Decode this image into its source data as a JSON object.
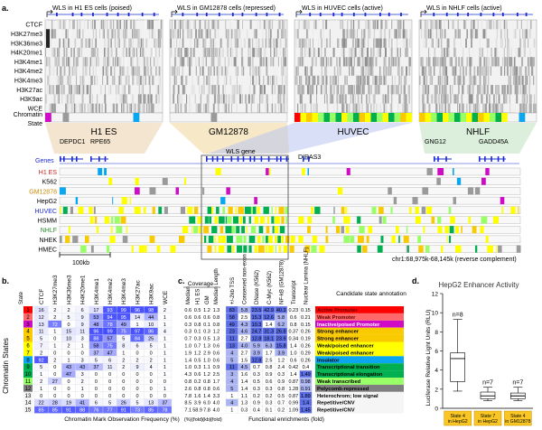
{
  "panel_a": {
    "label": "a.",
    "windows": [
      {
        "title": "WLS in H1 ES cells (poised)",
        "cell": "H1 ES"
      },
      {
        "title": "WLS in GM12878 cells (repressed)",
        "cell": "GM12878"
      },
      {
        "title": "WLS in HUVEC cells (active)",
        "cell": "HUVEC"
      },
      {
        "title": "WLS in NHLF cells (active)",
        "cell": "NHLF"
      }
    ],
    "marks": [
      "CTCF",
      "H3K27me3",
      "H3K36me3",
      "H4K20me1",
      "H3K4me1",
      "H3K4me2",
      "H3K4me3",
      "H3K27ac",
      "H3K9ac",
      "WCE",
      "Chromatin",
      "State"
    ],
    "genes_label": "Genes",
    "genes": [
      "DEPDC1",
      "RPE65",
      "WLS gene",
      "DIRAS3",
      "GNG12",
      "GADD45A"
    ],
    "cell_types": [
      {
        "name": "H1 ES",
        "color": "#cc2222"
      },
      {
        "name": "K562",
        "color": "#000000"
      },
      {
        "name": "GM12878",
        "color": "#c98a00"
      },
      {
        "name": "HepG2",
        "color": "#000000"
      },
      {
        "name": "HUVEC",
        "color": "#1a2bd0"
      },
      {
        "name": "HSMM",
        "color": "#000000"
      },
      {
        "name": "NHLF",
        "color": "#2a8a2a"
      },
      {
        "name": "NHEK",
        "color": "#000000"
      },
      {
        "name": "HMEC",
        "color": "#000000"
      }
    ],
    "scale_label": "100kb",
    "coords": "chr1:68,975k-68,145k (reverse complement)"
  },
  "panel_b": {
    "label": "b.",
    "side_label": "Chromatin States",
    "state_header": "State",
    "columns": [
      "CTCF",
      "H3K27me3",
      "H3K36me3",
      "H4K20me1",
      "H3K4me1",
      "H3K4me2",
      "H3K4me3",
      "H3K27ac",
      "H3K9ac",
      "WCE"
    ],
    "rows": [
      [
        "16",
        "2",
        "2",
        "6",
        "17",
        "93",
        "99",
        "96",
        "98",
        "2"
      ],
      [
        "12",
        "2",
        "5",
        "9",
        "53",
        "94",
        "95",
        "14",
        "44",
        "1"
      ],
      [
        "13",
        "72",
        "0",
        "9",
        "48",
        "78",
        "49",
        "1",
        "10",
        "1"
      ],
      [
        "11",
        "1",
        "15",
        "11",
        "96",
        "99",
        "75",
        "97",
        "86",
        "4"
      ],
      [
        "5",
        "0",
        "10",
        "3",
        "88",
        "57",
        "5",
        "84",
        "25",
        "1"
      ],
      [
        "7",
        "1",
        "2",
        "1",
        "58",
        "75",
        "8",
        "6",
        "5",
        "1"
      ],
      [
        "2",
        "0",
        "0",
        "0",
        "37",
        "47",
        "1",
        "0",
        "0",
        "1"
      ],
      [
        "92",
        "2",
        "1",
        "3",
        "5",
        "6",
        "2",
        "2",
        "2",
        "1"
      ],
      [
        "5",
        "0",
        "43",
        "43",
        "37",
        "11",
        "2",
        "9",
        "4",
        "1"
      ],
      [
        "1",
        "0",
        "47",
        "3",
        "0",
        "0",
        "0",
        "0",
        "0",
        "1"
      ],
      [
        "2",
        "27",
        "0",
        "2",
        "0",
        "0",
        "0",
        "0",
        "0",
        "0"
      ],
      [
        "1",
        "0",
        "0",
        "1",
        "0",
        "0",
        "0",
        "0",
        "0",
        "1"
      ],
      [
        "0",
        "0",
        "0",
        "0",
        "0",
        "0",
        "0",
        "0",
        "0",
        "0"
      ],
      [
        "22",
        "28",
        "19",
        "41",
        "6",
        "5",
        "26",
        "5",
        "13",
        "37"
      ],
      [
        "85",
        "85",
        "91",
        "88",
        "76",
        "77",
        "91",
        "73",
        "85",
        "78"
      ]
    ],
    "axis_label": "Chromatin Mark Observation Frequency (%)"
  },
  "panel_c": {
    "label": "c.",
    "coverage_header": "Coverage",
    "coverage_cols": [
      "Median",
      "H1 ES",
      "GM",
      "Median Length"
    ],
    "func_cols": [
      "+/-2kb TSS",
      "Conserved non-exon",
      "DNase (K562)",
      "C-Myc (K562)",
      "NF-kB (GM12878)",
      "Transcript",
      "Nuclear Lamina (NHLF)"
    ],
    "coverage": [
      [
        "0.6",
        "0.5",
        "1.2",
        "1.3"
      ],
      [
        "0.6",
        "0.6",
        "0.6",
        "0.8"
      ],
      [
        "0.3",
        "0.8",
        "0.1",
        "0.8"
      ],
      [
        "0.3",
        "0.1",
        "0.3",
        "1.2"
      ],
      [
        "0.7",
        "0.3",
        "0.5",
        "1.3"
      ],
      [
        "1.0",
        "0.7",
        "1.3",
        "0.6"
      ],
      [
        "1.9",
        "1.2",
        "2.9",
        "0.6"
      ],
      [
        "1.4",
        "0.5",
        "1.0",
        "0.6"
      ],
      [
        "1.0",
        "0.3",
        "1.1",
        "0.9"
      ],
      [
        "4.3",
        "0.6",
        "1.2",
        "2.5"
      ],
      [
        "0.8",
        "0.2",
        "0.8",
        "1.7"
      ],
      [
        "2.6",
        "0.8",
        "0.8",
        "0.6"
      ],
      [
        "7.8",
        "1.6",
        "1.4",
        "3.3"
      ],
      [
        "8.5",
        "3.9",
        "6.0",
        "4.0"
      ],
      [
        "7.1",
        "58.9",
        "7.8",
        "4.0"
      ]
    ],
    "func": [
      [
        "83",
        "5.8",
        "23.5",
        "42.9",
        "40.3",
        "0.23",
        "0.15"
      ],
      [
        "58",
        "2.5",
        "15.3",
        "12.6",
        "5.8",
        "0.6",
        "0.21"
      ],
      [
        "49",
        "4.3",
        "10.3",
        "1.4",
        "6.2",
        "0.8",
        "0.15"
      ],
      [
        "23",
        "4.6",
        "24.7",
        "31.3",
        "26.8",
        "0.37",
        "0.26"
      ],
      [
        "11",
        "2.7",
        "12.8",
        "18.1",
        "23.9",
        "0.34",
        "0.19"
      ],
      [
        "13",
        "4.0",
        "5.9",
        "6.3",
        "15.8",
        "1.4",
        "0.26"
      ],
      [
        "4",
        "2.7",
        "3.9",
        "1.7",
        "3.9",
        "1.0",
        "0.29"
      ],
      [
        "5",
        "1.5",
        "12.8",
        "2.5",
        "1.2",
        "0.6",
        "0.26"
      ],
      [
        "11",
        "4.5",
        "0.7",
        "0.8",
        "2.4",
        "0.42",
        "0.4"
      ],
      [
        "3",
        "1.6",
        "0.3",
        "0.9",
        "0.3",
        "1.4",
        "1.49"
      ],
      [
        "4",
        "1.4",
        "0.5",
        "0.6",
        "0.9",
        "0.87",
        "0.98"
      ],
      [
        "5",
        "1.4",
        "0.3",
        "0.3",
        "0.8",
        "1.28",
        "0.91"
      ],
      [
        "1",
        "1.1",
        "0.2",
        "0.2",
        "0.5",
        "0.87",
        "1.89"
      ],
      [
        "4",
        "1.3",
        "0.9",
        "0.3",
        "0.7",
        "0.99",
        "1.4"
      ],
      [
        "1",
        "0.3",
        "0.4",
        "0.1",
        "0.2",
        "1.09",
        "1.45"
      ]
    ],
    "units": [
      "(%)",
      "(fold)",
      "(kb)",
      "(fold)"
    ],
    "func_axis_label": "Functional enrichments (fold)",
    "annotation_header": "Candidate state annotation",
    "annotations": [
      {
        "name": "Active Promoter",
        "color": "#ff0000"
      },
      {
        "name": "Weak Promoter",
        "color": "#ff6969"
      },
      {
        "name": "Inactive/poised Promoter",
        "color": "#cf0bc6"
      },
      {
        "name": "Strong enhancer",
        "color": "#faca00"
      },
      {
        "name": "Strong enhancer",
        "color": "#faca00"
      },
      {
        "name": "Weak/poised enhancer",
        "color": "#ffff00"
      },
      {
        "name": "Weak/poised enhancer",
        "color": "#ffff00"
      },
      {
        "name": "Insulator",
        "color": "#0aa6f0"
      },
      {
        "name": "Transcriptional transition",
        "color": "#00b050"
      },
      {
        "name": "Transcriptional elongation",
        "color": "#00b050"
      },
      {
        "name": "Weak transcribed",
        "color": "#99ff66"
      },
      {
        "name": "Polycomb-repressed",
        "color": "#7f7f7f"
      },
      {
        "name": "Heterochrom; low signal",
        "color": "#f5f5f5"
      },
      {
        "name": "Repetitive/CNV",
        "color": "#f5f5f5"
      },
      {
        "name": "Repetitive/CNV",
        "color": "#f5f5f5"
      }
    ]
  },
  "panel_d": {
    "label": "d.",
    "title": "HepG2 Enhancer Activity",
    "ylabel": "Luciferase Relative Light Units (RLU)"
  },
  "chart_data": {
    "type": "box",
    "title": "HepG2 Enhancer Activity",
    "xlabel": "",
    "ylabel": "Luciferase Relative Light Units (RLU)",
    "ylim": [
      0,
      12
    ],
    "yticks": [
      0,
      2,
      4,
      6,
      8,
      10,
      12
    ],
    "categories": [
      "State 4 in HepG2",
      "State 7 in HepG2",
      "State 4 in GM12878"
    ],
    "n_labels": [
      "n=8",
      "n=7",
      "n=7"
    ],
    "boxes": [
      {
        "min": 1.8,
        "q1": 2.8,
        "median": 5.2,
        "q3": 5.8,
        "max": 9.3
      },
      {
        "min": 0.8,
        "q1": 1.0,
        "median": 1.3,
        "q3": 1.7,
        "max": 2.2
      },
      {
        "min": 0.8,
        "q1": 1.0,
        "median": 1.3,
        "q3": 1.6,
        "max": 2.2
      }
    ]
  }
}
